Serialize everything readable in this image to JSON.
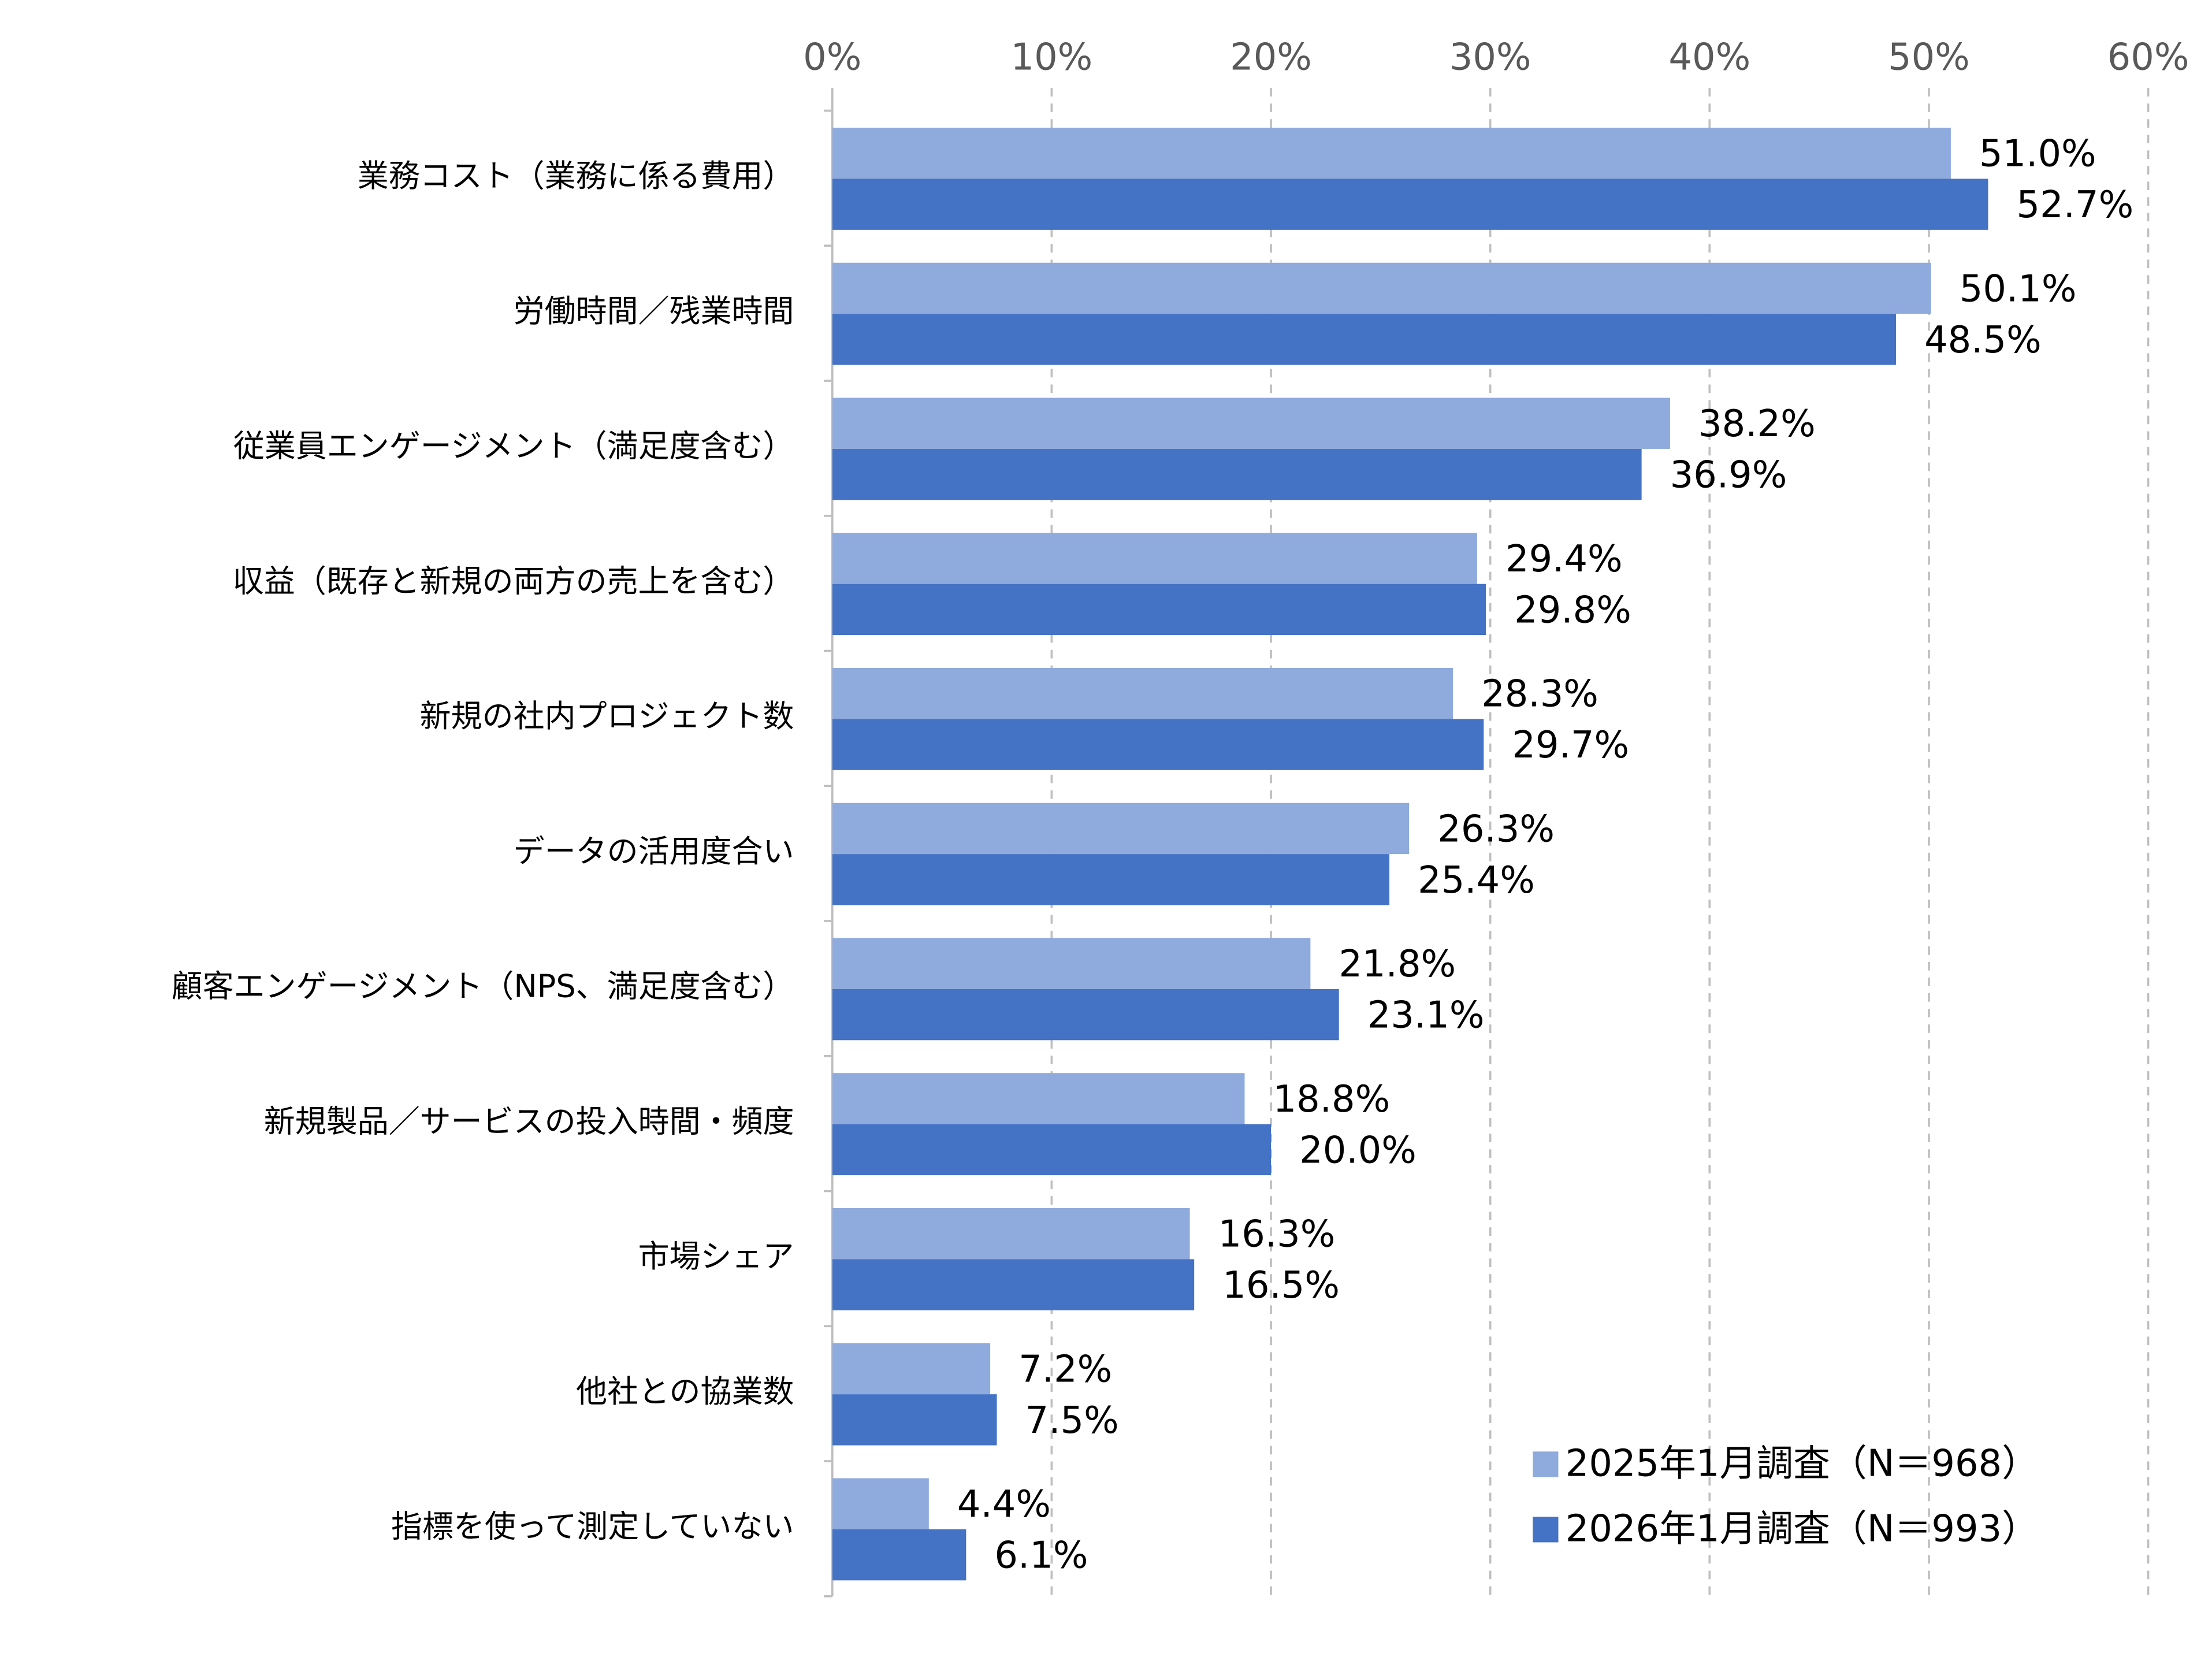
{
  "chart_data": {
    "type": "bar",
    "orientation": "horizontal",
    "categories": [
      "業務コスト（業務に係る費用）",
      "労働時間／残業時間",
      "従業員エンゲージメント（満足度含む）",
      "収益（既存と新規の両方の売上を含む）",
      "新規の社内プロジェクト数",
      "データの活用度合い",
      "顧客エンゲージメント（NPS、満足度含む）",
      "新規製品／サービスの投入時間・頻度",
      "市場シェア",
      "他社との協業数",
      "指標を使って測定していない"
    ],
    "series": [
      {
        "name": "2025年1月調査（N＝968）",
        "color": "#8faadc",
        "values": [
          51.0,
          50.1,
          38.2,
          29.4,
          28.3,
          26.3,
          21.8,
          18.8,
          16.3,
          7.2,
          4.4
        ],
        "value_labels": [
          "51.0%",
          "50.1%",
          "38.2%",
          "29.4%",
          "28.3%",
          "26.3%",
          "21.8%",
          "18.8%",
          "16.3%",
          "7.2%",
          "4.4%"
        ]
      },
      {
        "name": "2026年1月調査（N＝993）",
        "color": "#4472c4",
        "values": [
          52.7,
          48.5,
          36.9,
          29.8,
          29.7,
          25.4,
          23.1,
          20.0,
          16.5,
          7.5,
          6.1
        ],
        "value_labels": [
          "52.7%",
          "48.5%",
          "36.9%",
          "29.8%",
          "29.7%",
          "25.4%",
          "23.1%",
          "20.0%",
          "16.5%",
          "7.5%",
          "6.1%"
        ]
      }
    ],
    "xlim": [
      0,
      60
    ],
    "xticks": [
      {
        "value": 0,
        "label": "0%"
      },
      {
        "value": 10,
        "label": "10%"
      },
      {
        "value": 20,
        "label": "20%"
      },
      {
        "value": 30,
        "label": "30%"
      },
      {
        "value": 40,
        "label": "40%"
      },
      {
        "value": 50,
        "label": "50%"
      },
      {
        "value": 60,
        "label": "60%"
      }
    ],
    "grid": true,
    "legend": "lower right"
  }
}
